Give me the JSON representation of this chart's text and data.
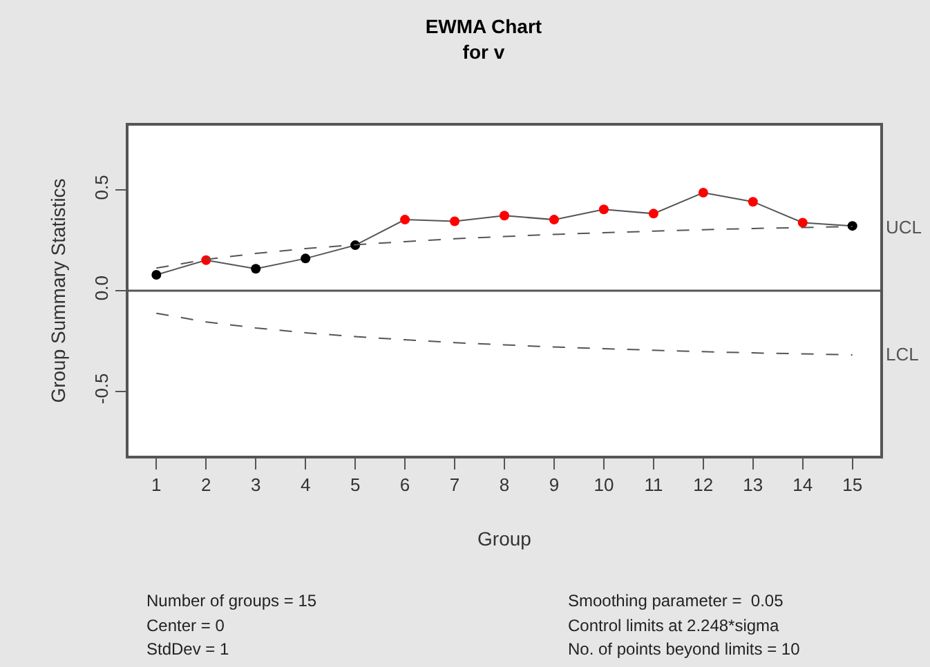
{
  "chart_data": {
    "type": "line",
    "title": "EWMA Chart\nfor v",
    "xlabel": "Group",
    "ylabel": "Group Summary Statistics",
    "x": [
      1,
      2,
      3,
      4,
      5,
      6,
      7,
      8,
      9,
      10,
      11,
      12,
      13,
      14,
      15
    ],
    "series": [
      {
        "color": "#555555",
        "marker": "circle",
        "line_style": "solid",
        "colors": [
          "#000000",
          "#ff0000",
          "#000000",
          "#000000",
          "#000000",
          "#ff0000",
          "#ff0000",
          "#ff0000",
          "#ff0000",
          "#ff0000",
          "#ff0000",
          "#ff0000",
          "#ff0000",
          "#ff0000",
          "#000000"
        ],
        "values": [
          0.079,
          0.152,
          0.109,
          0.16,
          0.226,
          0.353,
          0.345,
          0.373,
          0.353,
          0.404,
          0.383,
          0.487,
          0.442,
          0.338,
          0.322
        ]
      },
      {
        "name": "UCL",
        "color": "#555555",
        "marker": "none",
        "line_style": "dashed",
        "values": [
          0.112,
          0.155,
          0.185,
          0.209,
          0.228,
          0.244,
          0.258,
          0.269,
          0.28,
          0.288,
          0.296,
          0.303,
          0.309,
          0.314,
          0.319
        ]
      },
      {
        "name": "LCL",
        "color": "#555555",
        "marker": "none",
        "line_style": "dashed",
        "values": [
          -0.112,
          -0.155,
          -0.185,
          -0.209,
          -0.228,
          -0.244,
          -0.258,
          -0.269,
          -0.28,
          -0.288,
          -0.296,
          -0.303,
          -0.309,
          -0.314,
          -0.319
        ]
      }
    ],
    "ref_lines": [
      {
        "axis": "y",
        "value": 0,
        "color": "#555555",
        "line_style": "solid"
      }
    ],
    "xlim": [
      0.44,
      15.56
    ],
    "xticks": [
      1,
      2,
      3,
      4,
      5,
      6,
      7,
      8,
      9,
      10,
      11,
      12,
      13,
      14,
      15
    ],
    "ylim": [
      -0.82,
      0.82
    ],
    "yticks": [
      {
        "value": -0.5,
        "label": "-0.5"
      },
      {
        "value": 0,
        "label": "0.0"
      },
      {
        "value": 0.5,
        "label": "0.5"
      }
    ],
    "annotations": [
      "Number of groups = 15",
      "Center = 0",
      "StdDev = 1",
      "Smoothing parameter =  0.05",
      "Control limits at 2.248*sigma",
      "No. of points beyond limits = 10"
    ]
  }
}
